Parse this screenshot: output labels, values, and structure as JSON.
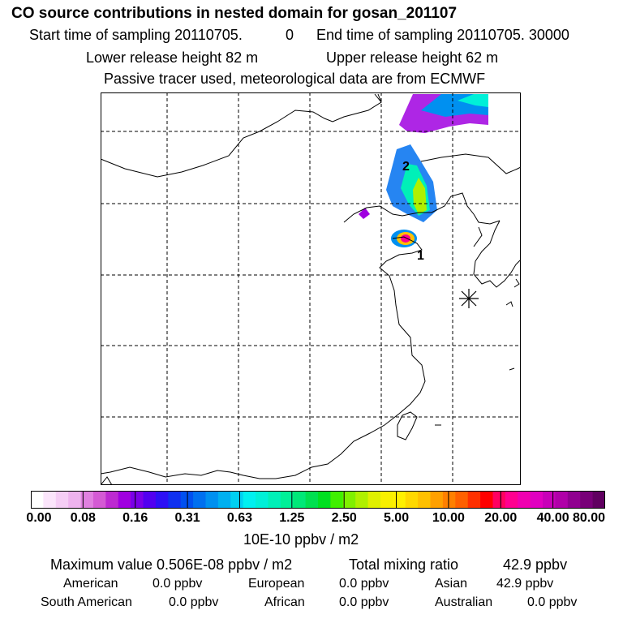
{
  "header": {
    "title": "CO  source contributions in nested domain for gosan_201107",
    "start_label": "Start time of sampling 20110705.",
    "start_hour": "0",
    "end_label": "End time of sampling 20110705. 30000",
    "lower_height": "Lower release height   82 m",
    "upper_height": "Upper release height   62 m",
    "tracer_note": "Passive tracer used, meteorological data are from ECMWF"
  },
  "map": {
    "labels": {
      "source_1": "1",
      "source_2": "2"
    }
  },
  "colorbar": {
    "ticks": [
      "0.00",
      "0.08",
      "0.16",
      "0.31",
      "0.63",
      "1.25",
      "2.50",
      "5.00",
      "10.00",
      "20.00",
      "40.00",
      "80.00"
    ],
    "unit": "10E-10 ppbv / m2",
    "colors": [
      "#ffffff",
      "#fbe5fb",
      "#f5cdf5",
      "#eeb3ee",
      "#e080e0",
      "#d45ad4",
      "#bd2ad1",
      "#a000e0",
      "#7a00e8",
      "#5200f0",
      "#2d10f5",
      "#1030f0",
      "#0050f0",
      "#0070f0",
      "#0090f0",
      "#00b0f0",
      "#00d0f2",
      "#00f0f0",
      "#00f0d8",
      "#00f0b8",
      "#00f098",
      "#00e878",
      "#00e050",
      "#00e020",
      "#40f000",
      "#80f000",
      "#b0f000",
      "#e0f000",
      "#f8f000",
      "#fff000",
      "#ffd800",
      "#ffc000",
      "#ffa000",
      "#ff8000",
      "#ff6000",
      "#ff3000",
      "#ff0000",
      "#ff0060",
      "#ff0090",
      "#f000b0",
      "#e000c0",
      "#c800b8",
      "#b000a8",
      "#900090",
      "#780078",
      "#600060"
    ]
  },
  "stats": {
    "max_label": "Maximum value  0.506E-08 ppbv / m2",
    "total_label": "Total mixing ratio",
    "total_value": "42.9 ppbv"
  },
  "regions": [
    {
      "name": "American",
      "value": "0.0 ppbv"
    },
    {
      "name": "European",
      "value": "0.0 ppbv"
    },
    {
      "name": "Asian",
      "value": "42.9 ppbv"
    },
    {
      "name": "South American",
      "value": "0.0 ppbv"
    },
    {
      "name": "African",
      "value": "0.0 ppbv"
    },
    {
      "name": "Australian",
      "value": "0.0 ppbv"
    }
  ]
}
